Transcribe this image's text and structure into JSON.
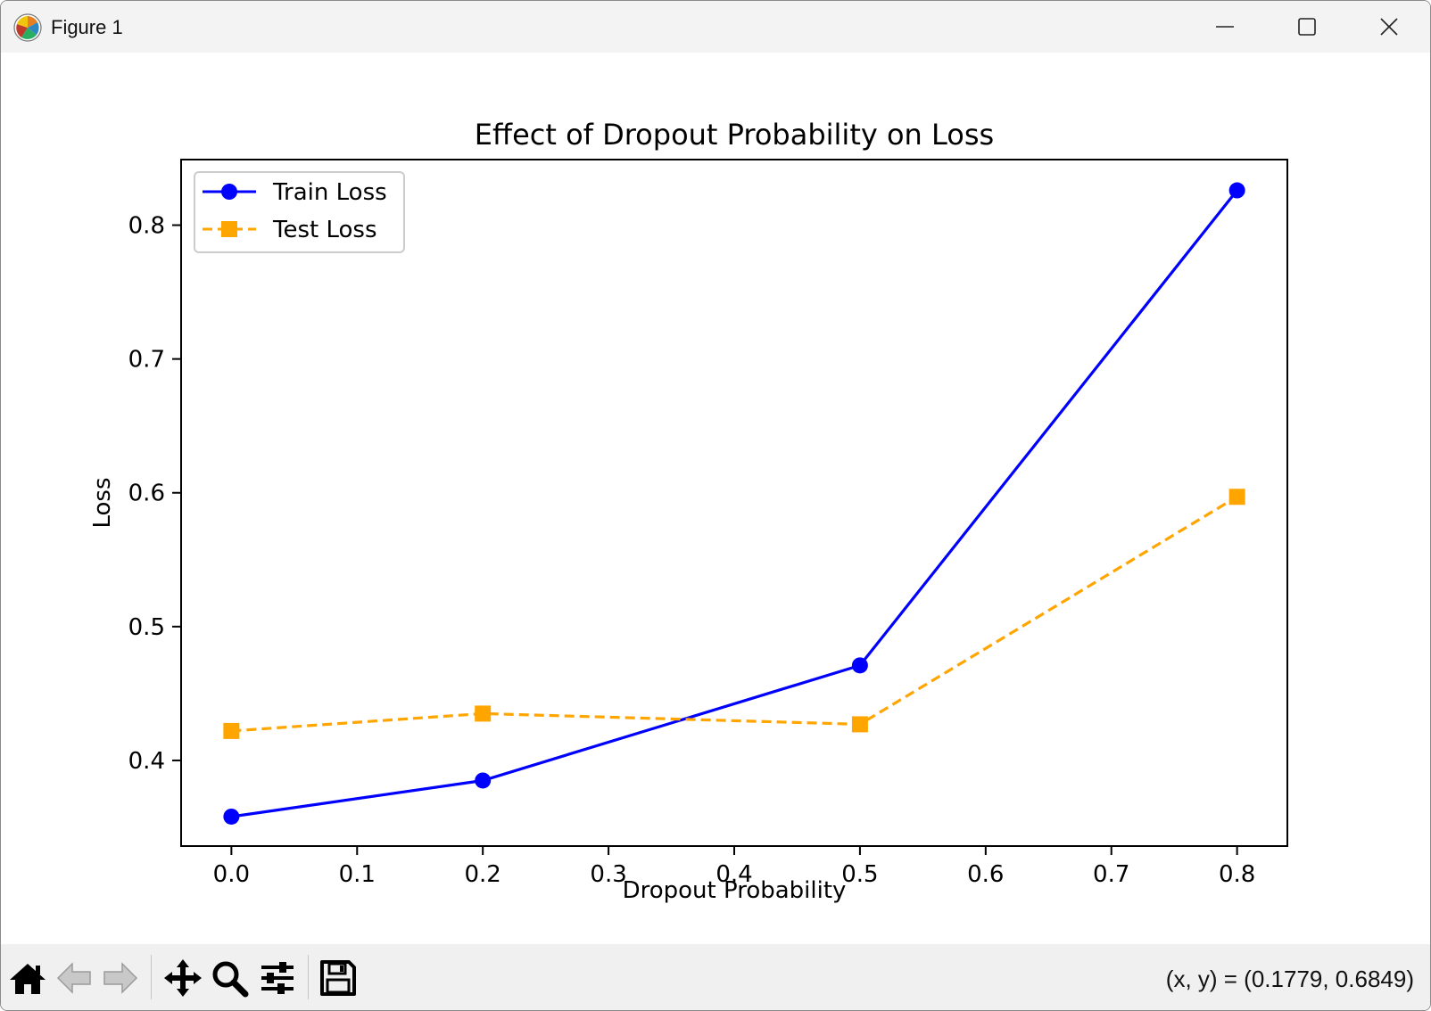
{
  "window": {
    "title": "Figure 1"
  },
  "chart_data": {
    "type": "line",
    "title": "Effect of Dropout Probability on Loss",
    "xlabel": "Dropout Probability",
    "ylabel": "Loss",
    "xlim": [
      -0.04,
      0.84
    ],
    "ylim": [
      0.336,
      0.849
    ],
    "xticks": [
      0.0,
      0.1,
      0.2,
      0.3,
      0.4,
      0.5,
      0.6,
      0.7,
      0.8
    ],
    "xtick_labels": [
      "0.0",
      "0.1",
      "0.2",
      "0.3",
      "0.4",
      "0.5",
      "0.6",
      "0.7",
      "0.8"
    ],
    "yticks": [
      0.4,
      0.5,
      0.6,
      0.7,
      0.8
    ],
    "ytick_labels": [
      "0.4",
      "0.5",
      "0.6",
      "0.7",
      "0.8"
    ],
    "grid": false,
    "legend": "upper-left",
    "x": [
      0.0,
      0.2,
      0.5,
      0.8
    ],
    "series": [
      {
        "name": "Train Loss",
        "values": [
          0.358,
          0.385,
          0.471,
          0.826
        ],
        "color": "#0000ff",
        "style": "solid",
        "marker": "circle"
      },
      {
        "name": "Test Loss",
        "values": [
          0.422,
          0.435,
          0.427,
          0.597
        ],
        "color": "#ffa500",
        "style": "dashed",
        "marker": "square"
      }
    ]
  },
  "toolbar": {
    "coords": "(x, y) = (0.1779, 0.6849)",
    "tools": [
      "home-icon",
      "back-icon",
      "forward-icon",
      "pan-icon",
      "zoom-icon",
      "configure-icon",
      "save-icon"
    ]
  }
}
